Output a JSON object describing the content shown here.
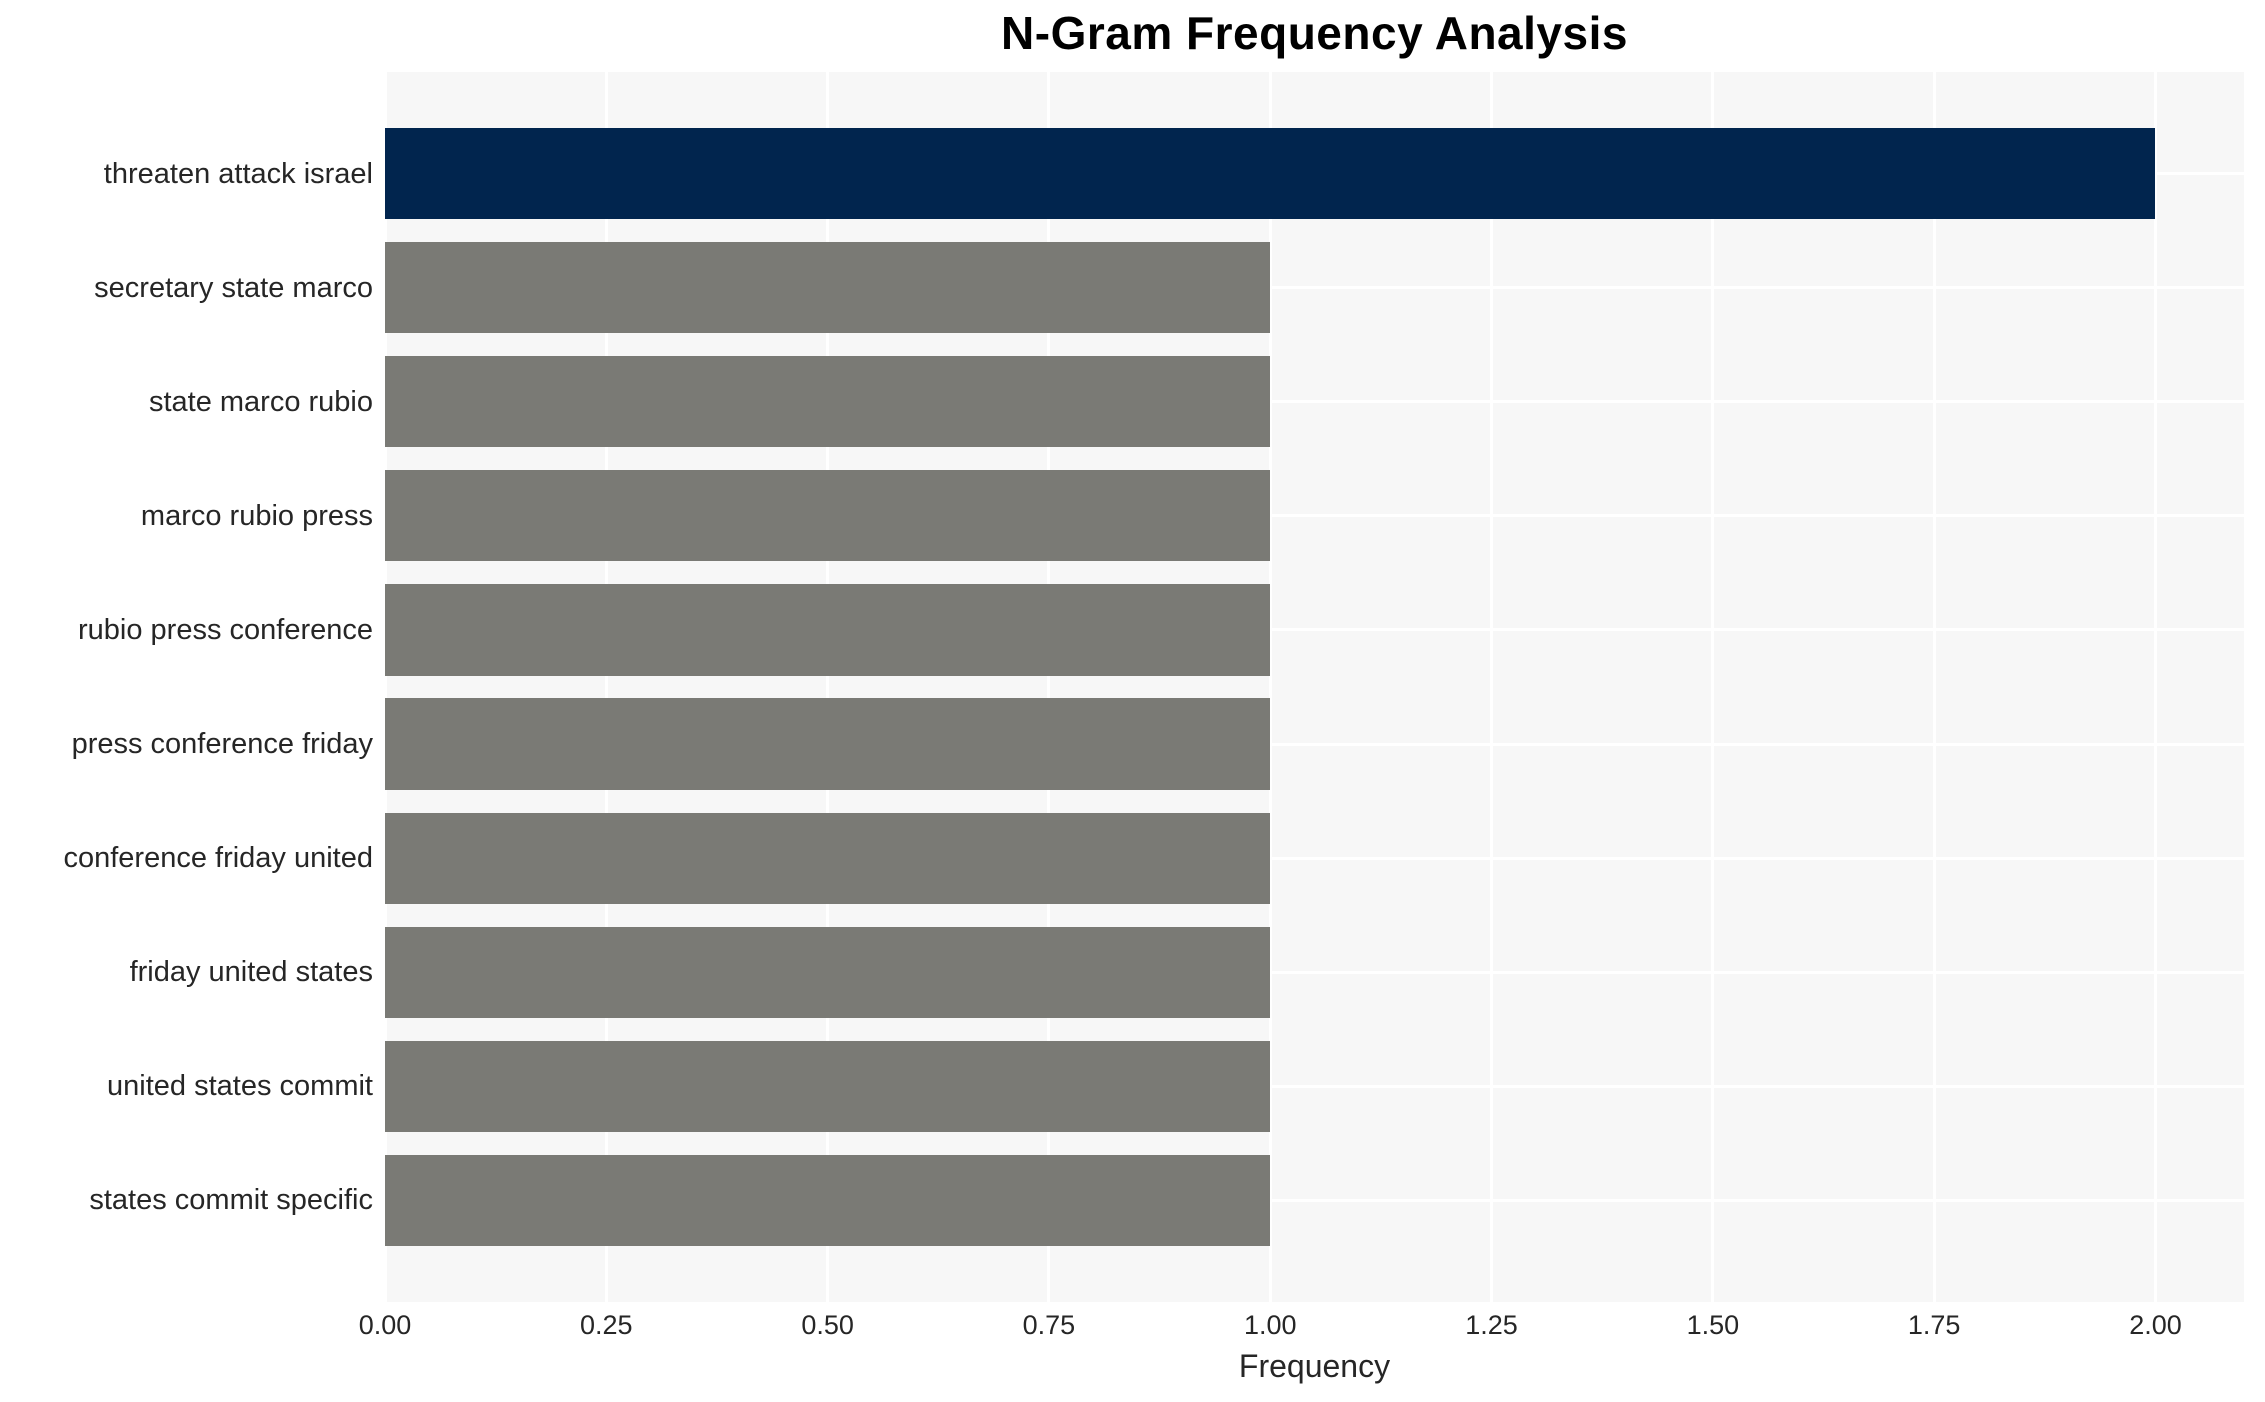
{
  "chart_data": {
    "type": "bar",
    "orientation": "horizontal",
    "title": "N-Gram Frequency Analysis",
    "xlabel": "Frequency",
    "ylabel": "",
    "categories": [
      "threaten attack israel",
      "secretary state marco",
      "state marco rubio",
      "marco rubio press",
      "rubio press conference",
      "press conference friday",
      "conference friday united",
      "friday united states",
      "united states commit",
      "states commit specific"
    ],
    "values": [
      2,
      1,
      1,
      1,
      1,
      1,
      1,
      1,
      1,
      1
    ],
    "bar_colors": [
      "#01254e",
      "#7a7a75",
      "#7a7a75",
      "#7a7a75",
      "#7a7a75",
      "#7a7a75",
      "#7a7a75",
      "#7a7a75",
      "#7a7a75",
      "#7a7a75"
    ],
    "xlim": [
      0,
      2.1
    ],
    "xticks": [
      {
        "value": 0.0,
        "label": "0.00"
      },
      {
        "value": 0.25,
        "label": "0.25"
      },
      {
        "value": 0.5,
        "label": "0.50"
      },
      {
        "value": 0.75,
        "label": "0.75"
      },
      {
        "value": 1.0,
        "label": "1.00"
      },
      {
        "value": 1.25,
        "label": "1.25"
      },
      {
        "value": 1.5,
        "label": "1.50"
      },
      {
        "value": 1.75,
        "label": "1.75"
      },
      {
        "value": 2.0,
        "label": "2.00"
      }
    ],
    "grid": true,
    "legend": false,
    "colors": {
      "highlight_bar": "#01254e",
      "default_bar": "#7a7a75",
      "plot_background": "#f7f7f7",
      "gridline": "#ffffff",
      "tick_text": "#262626",
      "title_text": "#000000"
    }
  }
}
